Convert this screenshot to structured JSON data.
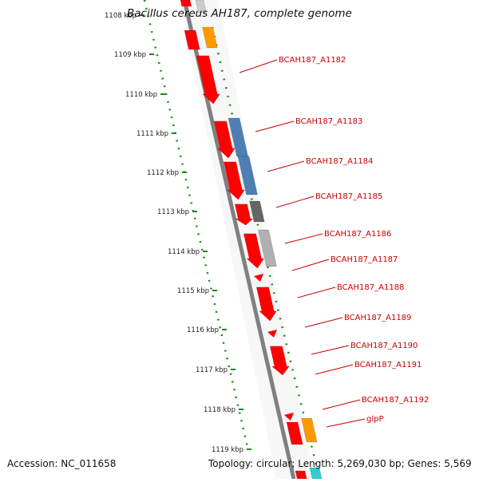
{
  "title": "Bacillus cereus AH187, complete genome",
  "footer": {
    "accession": "Accession: NC_011658",
    "summary": "Topology: circular; Length: 5,269,030 bp; Genes: 5,569"
  },
  "ruler": {
    "ticks": [
      "1108 kbp",
      "1109 kbp",
      "1110 kbp",
      "1111 kbp",
      "1112 kbp",
      "1113 kbp",
      "1114 kbp",
      "1115 kbp",
      "1116 kbp",
      "1117 kbp",
      "1118 kbp",
      "1119 kbp"
    ]
  },
  "gene_labels": [
    "BCAH187_A1182",
    "BCAH187_A1183",
    "BCAH187_A1184",
    "BCAH187_A1185",
    "BCAH187_A1186",
    "BCAH187_A1187",
    "BCAH187_A1188",
    "BCAH187_A1189",
    "BCAH187_A1190",
    "BCAH187_A1191",
    "BCAH187_A1192",
    "glpP"
  ],
  "colors": {
    "gene": "#ff0000",
    "backbone": "#808080",
    "ruler": "#1a8a1a",
    "label": "#cc0000",
    "blue_feature": "#4d7fb3",
    "orange_feature": "#ff9900",
    "grey_feature": "#b0b0b0",
    "dark_feature": "#666666",
    "cyan_feature": "#33cccc"
  }
}
